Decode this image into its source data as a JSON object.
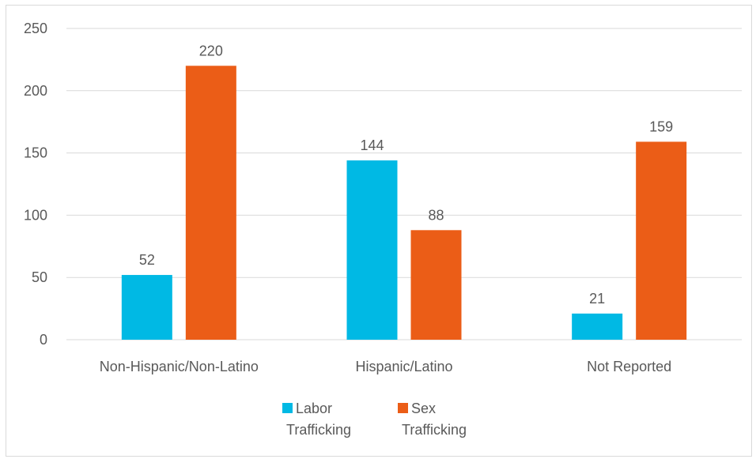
{
  "chart_data": {
    "type": "bar",
    "title": "",
    "xlabel": "",
    "ylabel": "",
    "categories": [
      "Non-Hispanic/Non-Latino",
      "Hispanic/Latino",
      "Not Reported"
    ],
    "series": [
      {
        "name": "Labor Trafficking",
        "legend_lines": [
          "Labor",
          "Trafficking"
        ],
        "values": [
          52,
          144,
          21
        ],
        "color": "#00b9e4"
      },
      {
        "name": "Sex Trafficking",
        "legend_lines": [
          "Sex",
          "Trafficking"
        ],
        "values": [
          220,
          88,
          159
        ],
        "color": "#eb5d17"
      }
    ],
    "ylim": [
      0,
      250
    ],
    "yticks": [
      0,
      50,
      100,
      150,
      200,
      250
    ],
    "grid": true,
    "legend_position": "bottom",
    "data_labels": true
  },
  "colors": {
    "gridline": "#d9d9d9",
    "axis_text": "#595959",
    "frame": "#d9d9d9"
  }
}
